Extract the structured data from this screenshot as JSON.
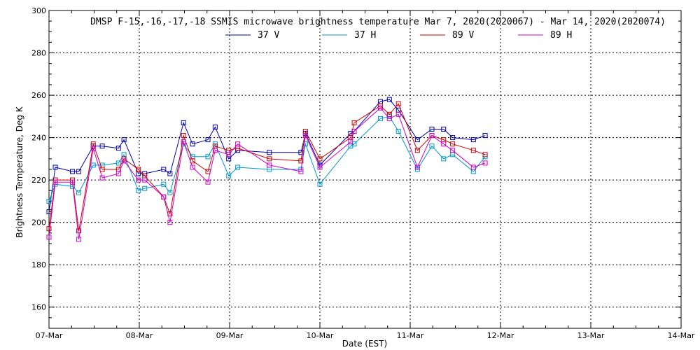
{
  "chart_data": {
    "type": "line",
    "title": "DMSP F-15,-16,-17,-18 SSMIS microwave brightness temperature Mar  7, 2020(2020067) - Mar 14, 2020(2020074)",
    "xlabel": "Date (EST)",
    "ylabel": "Brightness Temperature, Deg K",
    "xlim": [
      0,
      7
    ],
    "ylim": [
      150,
      300
    ],
    "x_ticks": [
      0,
      1,
      2,
      3,
      4,
      5,
      6,
      7
    ],
    "x_tick_labels": [
      "07-Mar",
      "08-Mar",
      "09-Mar",
      "10-Mar",
      "11-Mar",
      "12-Mar",
      "13-Mar",
      "14-Mar"
    ],
    "y_ticks": [
      160,
      180,
      200,
      220,
      240,
      260,
      280,
      300
    ],
    "grid": true,
    "legend_position": "top",
    "series": [
      {
        "name": "37 V",
        "color": "#0000aa",
        "x": [
          0.0,
          0.07,
          0.26,
          0.33,
          0.49,
          0.59,
          0.77,
          0.83,
          0.99,
          1.06,
          1.27,
          1.34,
          1.49,
          1.59,
          1.76,
          1.84,
          1.99,
          2.09,
          2.44,
          2.79,
          2.84,
          3.0,
          3.34,
          3.38,
          3.67,
          3.77,
          3.87,
          4.08,
          4.24,
          4.37,
          4.47,
          4.7,
          4.83
        ],
        "values": [
          205,
          226,
          224,
          224,
          236,
          236,
          235,
          239,
          223,
          223,
          225,
          223,
          247,
          237,
          239,
          245,
          230,
          234,
          233,
          233,
          242,
          227,
          242,
          243,
          257,
          258,
          253,
          239,
          244,
          244,
          240,
          239,
          241
        ]
      },
      {
        "name": "37 H",
        "color": "#0099cc",
        "x": [
          0.0,
          0.07,
          0.26,
          0.33,
          0.49,
          0.59,
          0.77,
          0.83,
          0.99,
          1.06,
          1.27,
          1.34,
          1.49,
          1.59,
          1.76,
          1.84,
          1.99,
          2.09,
          2.44,
          2.79,
          2.84,
          3.0,
          3.34,
          3.38,
          3.67,
          3.77,
          3.87,
          4.08,
          4.24,
          4.37,
          4.47,
          4.7,
          4.83
        ],
        "values": [
          210,
          218,
          217,
          214,
          227,
          227,
          228,
          232,
          215,
          216,
          218,
          214,
          237,
          231,
          231,
          237,
          222,
          226,
          225,
          225,
          237,
          218,
          236,
          237,
          249,
          250,
          243,
          225,
          236,
          230,
          232,
          224,
          231
        ]
      },
      {
        "name": "89 V",
        "color": "#cc0000",
        "x": [
          0.0,
          0.07,
          0.26,
          0.33,
          0.49,
          0.59,
          0.77,
          0.83,
          0.99,
          1.06,
          1.27,
          1.34,
          1.49,
          1.59,
          1.76,
          1.84,
          1.99,
          2.09,
          2.44,
          2.79,
          2.84,
          3.0,
          3.34,
          3.38,
          3.67,
          3.77,
          3.87,
          4.08,
          4.24,
          4.37,
          4.47,
          4.7,
          4.83
        ],
        "values": [
          197,
          220,
          220,
          196,
          237,
          225,
          225,
          230,
          225,
          222,
          212,
          204,
          241,
          229,
          224,
          236,
          234,
          235,
          230,
          229,
          243,
          230,
          240,
          247,
          255,
          251,
          256,
          234,
          241,
          239,
          237,
          234,
          232
        ]
      },
      {
        "name": "89 H",
        "color": "#cc00cc",
        "x": [
          0.0,
          0.07,
          0.26,
          0.33,
          0.49,
          0.59,
          0.77,
          0.83,
          0.99,
          1.06,
          1.27,
          1.34,
          1.49,
          1.59,
          1.76,
          1.84,
          1.99,
          2.09,
          2.44,
          2.79,
          2.84,
          3.0,
          3.34,
          3.38,
          3.67,
          3.77,
          3.87,
          4.08,
          4.24,
          4.37,
          4.47,
          4.7,
          4.83
        ],
        "values": [
          193,
          219,
          219,
          192,
          235,
          221,
          223,
          229,
          220,
          220,
          212,
          200,
          238,
          226,
          219,
          234,
          232,
          237,
          227,
          224,
          241,
          226,
          238,
          243,
          254,
          249,
          251,
          226,
          241,
          237,
          234,
          226,
          228
        ]
      }
    ]
  }
}
